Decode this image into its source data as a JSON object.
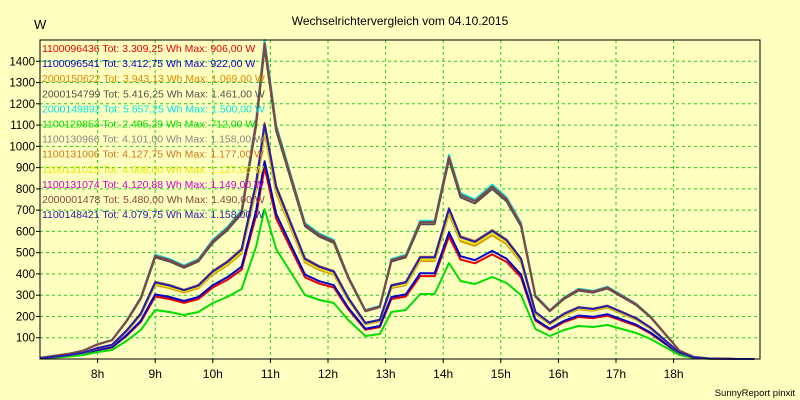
{
  "chart_data": {
    "type": "line",
    "title": "Wechselrichtervergleich vom 04.10.2015",
    "ylabel": "W",
    "footer": "SunnyReport pinxit",
    "ylim": [
      0,
      1500
    ],
    "yticks": [
      100,
      200,
      300,
      400,
      500,
      600,
      700,
      800,
      900,
      1000,
      1100,
      1200,
      1300,
      1400
    ],
    "xlim": [
      7.0,
      19.5
    ],
    "xticks": [
      8,
      9,
      10,
      11,
      12,
      13,
      14,
      15,
      16,
      17,
      18
    ],
    "xtick_labels": [
      "8h",
      "9h",
      "10h",
      "11h",
      "12h",
      "13h",
      "14h",
      "15h",
      "16h",
      "17h",
      "18h"
    ],
    "grid": true,
    "legend_position": "top-left",
    "series": [
      {
        "name": "1100096436 Tot: 3.309,25 Wh Max: 906,00 W",
        "color": "#e60000",
        "peak": 906,
        "scale": 0.6
      },
      {
        "name": "1100096541 Tot: 3.412,75 Wh Max: 922,00 W",
        "color": "#0000cc",
        "peak": 922,
        "scale": 0.62
      },
      {
        "name": "2000150622 Tot: 3.943,13 Wh Max: 1.069,00 W",
        "color": "#dd8800",
        "peak": 1069,
        "scale": 0.71
      },
      {
        "name": "2000154799 Tot: 5.416,25 Wh Max: 1.461,00 W",
        "color": "#505050",
        "peak": 1461,
        "scale": 0.975
      },
      {
        "name": "2000149892 Tot: 5.657,25 Wh Max: 1.500,00 W",
        "color": "#00e6e6",
        "peak": 1500,
        "scale": 1.0
      },
      {
        "name": "1100129853 Tot: 2.495,29 Wh Max: 712,00 W",
        "color": "#00dd00",
        "peak": 712,
        "scale": 0.47
      },
      {
        "name": "1100130966 Tot: 4.101,00 Wh Max: 1.158,00 W",
        "color": "#888888",
        "peak": 1158,
        "scale": 0.735
      },
      {
        "name": "1100131006 Tot: 4.127,75 Wh Max: 1.177,00 W",
        "color": "#cc7722",
        "peak": 1177,
        "scale": 0.74
      },
      {
        "name": "1100131025 Tot: 4.008,00 Wh Max: 1.127,00 W",
        "color": "#e6e600",
        "peak": 1127,
        "scale": 0.72
      },
      {
        "name": "1100131074 Tot: 4.120,88 Wh Max: 1.149,00 W",
        "color": "#cc00cc",
        "peak": 1149,
        "scale": 0.735
      },
      {
        "name": "2000001478 Tot: 5.480,00 Wh Max: 1.490,00 W",
        "color": "#884444",
        "peak": 1490,
        "scale": 0.99
      },
      {
        "name": "1100148421 Tot: 4.079,75 Wh Max: 1.158,00 W",
        "color": "#2222aa",
        "peak": 1158,
        "scale": 0.735
      }
    ],
    "base_x": [
      7.0,
      7.25,
      7.5,
      7.75,
      8.0,
      8.25,
      8.5,
      8.75,
      9.0,
      9.25,
      9.5,
      9.75,
      10.0,
      10.25,
      10.5,
      10.75,
      10.9,
      11.1,
      11.35,
      11.6,
      11.85,
      12.1,
      12.35,
      12.65,
      12.9,
      13.1,
      13.35,
      13.6,
      13.85,
      14.1,
      14.3,
      14.55,
      14.85,
      15.1,
      15.35,
      15.6,
      15.85,
      16.1,
      16.35,
      16.6,
      16.85,
      17.1,
      17.35,
      17.6,
      17.85,
      18.1,
      18.35,
      18.6,
      18.85,
      19.1,
      19.4
    ],
    "base_y": [
      5,
      15,
      25,
      40,
      70,
      90,
      180,
      290,
      490,
      470,
      440,
      470,
      560,
      620,
      700,
      1120,
      1500,
      1100,
      870,
      640,
      590,
      560,
      390,
      230,
      250,
      470,
      490,
      650,
      650,
      960,
      780,
      750,
      820,
      760,
      640,
      300,
      230,
      290,
      330,
      320,
      340,
      300,
      260,
      200,
      120,
      40,
      10,
      3,
      1,
      0,
      0
    ]
  }
}
